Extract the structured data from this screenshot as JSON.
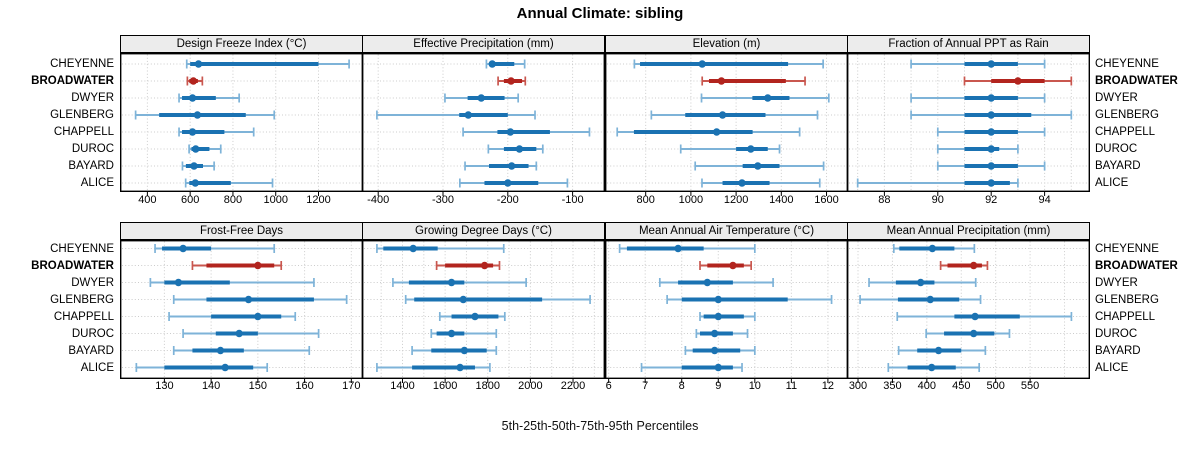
{
  "title": "Annual Climate: sibling",
  "caption": "5th-25th-50th-75th-95th Percentiles",
  "colors": {
    "blue": "#1a72b2",
    "blue_light": "#7eb3d8",
    "red": "#b2241e",
    "red_light": "#c9574f",
    "grid": "#cccccc",
    "strip_bg": "#ececec",
    "border": "#000000"
  },
  "chart_data": {
    "type": "dotplot-interval",
    "title": "Annual Climate: sibling",
    "subtitle": "5th-25th-50th-75th-95th Percentiles",
    "percentiles": [
      "5th",
      "25th",
      "50th",
      "75th",
      "95th"
    ],
    "stations": [
      "CHEYENNE",
      "BROADWATER",
      "DWYER",
      "GLENBERG",
      "CHAPPELL",
      "DUROC",
      "BAYARD",
      "ALICE"
    ],
    "highlight_station": "BROADWATER",
    "legend_position": "none",
    "grid": "dotted",
    "panels": [
      {
        "id": "design-freeze-index",
        "title": "Design Freeze Index (°C)",
        "row": 0,
        "col": 0,
        "xlim": [
          272,
          1408
        ],
        "ticks": [
          400,
          600,
          800,
          1000,
          1200
        ],
        "gridlines": [
          400,
          600,
          800,
          1000,
          1200,
          1400
        ],
        "values": [
          [
            584,
            600,
            639,
            1200,
            1343
          ],
          [
            587,
            596,
            615,
            636,
            657
          ],
          [
            548,
            562,
            611,
            720,
            829
          ],
          [
            345,
            455,
            634,
            860,
            993
          ],
          [
            548,
            562,
            611,
            760,
            897
          ],
          [
            595,
            606,
            626,
            690,
            743
          ],
          [
            564,
            580,
            618,
            660,
            712
          ],
          [
            579,
            596,
            624,
            790,
            985
          ]
        ]
      },
      {
        "id": "effective-precipitation",
        "title": "Effective Precipitation (mm)",
        "row": 0,
        "col": 1,
        "xlim": [
          -425,
          -50
        ],
        "ticks": [
          -400,
          -300,
          -200,
          -100
        ],
        "gridlines": [
          -400,
          -300,
          -200,
          -100
        ],
        "values": [
          [
            -233,
            -229,
            -224,
            -190,
            -174
          ],
          [
            -215,
            -206,
            -195,
            -178,
            -173
          ],
          [
            -297,
            -262,
            -241,
            -205,
            -184
          ],
          [
            -402,
            -275,
            -261,
            -200,
            -158
          ],
          [
            -269,
            -216,
            -196,
            -135,
            -74
          ],
          [
            -230,
            -206,
            -182,
            -156,
            -146
          ],
          [
            -266,
            -229,
            -194,
            -168,
            -156
          ],
          [
            -274,
            -236,
            -200,
            -153,
            -108
          ]
        ]
      },
      {
        "id": "elevation",
        "title": "Elevation (m)",
        "row": 0,
        "col": 2,
        "xlim": [
          620,
          1695
        ],
        "ticks": [
          800,
          1000,
          1200,
          1400,
          1600
        ],
        "gridlines": [
          800,
          1000,
          1200,
          1400,
          1600
        ],
        "values": [
          [
            750,
            775,
            1050,
            1430,
            1585
          ],
          [
            1050,
            1080,
            1135,
            1420,
            1505
          ],
          [
            1047,
            1272,
            1340,
            1436,
            1610
          ],
          [
            825,
            975,
            1140,
            1330,
            1560
          ],
          [
            674,
            748,
            1114,
            1273,
            1481
          ],
          [
            955,
            1200,
            1265,
            1340,
            1392
          ],
          [
            1019,
            1229,
            1296,
            1392,
            1587
          ],
          [
            1049,
            1140,
            1226,
            1348,
            1570
          ]
        ]
      },
      {
        "id": "fraction-annual-ppt-as-rain",
        "title": "Fraction of Annual PPT as Rain",
        "row": 0,
        "col": 3,
        "xlim": [
          86.6,
          95.7
        ],
        "ticks": [
          88,
          90,
          92,
          94
        ],
        "gridlines": [
          87,
          88,
          89,
          90,
          91,
          92,
          93,
          94,
          95
        ],
        "values": [
          [
            89,
            91,
            92,
            93,
            94
          ],
          [
            91,
            92,
            93,
            94,
            95
          ],
          [
            89,
            91,
            92,
            93,
            94
          ],
          [
            89,
            91,
            92,
            93.5,
            95
          ],
          [
            90,
            91,
            92,
            93,
            94
          ],
          [
            90,
            91,
            92,
            92.3,
            93
          ],
          [
            90,
            91,
            92,
            93,
            94
          ],
          [
            87,
            91,
            92,
            92.7,
            93
          ]
        ]
      },
      {
        "id": "frost-free-days",
        "title": "Frost-Free Days",
        "row": 1,
        "col": 0,
        "xlim": [
          120.5,
          172.5
        ],
        "ticks": [
          130,
          140,
          150,
          160,
          170
        ],
        "gridlines": [
          130,
          140,
          150,
          160,
          170
        ],
        "values": [
          [
            128,
            129.5,
            134,
            140,
            153.5
          ],
          [
            136,
            139,
            150,
            153.5,
            155
          ],
          [
            127,
            130,
            133,
            144,
            162
          ],
          [
            132,
            139,
            148,
            162,
            169
          ],
          [
            131,
            140,
            150,
            155,
            158
          ],
          [
            134,
            141,
            146,
            150,
            163
          ],
          [
            132,
            136,
            142,
            147,
            161
          ],
          [
            124,
            130,
            143,
            149,
            152
          ]
        ]
      },
      {
        "id": "growing-degree-days",
        "title": "Growing Degree Days (°C)",
        "row": 1,
        "col": 1,
        "xlim": [
          1210,
          2350
        ],
        "ticks": [
          1400,
          1600,
          1800,
          2000,
          2200
        ],
        "gridlines": [
          1300,
          1400,
          1500,
          1600,
          1700,
          1800,
          1900,
          2000,
          2100,
          2200,
          2300
        ],
        "values": [
          [
            1280,
            1310,
            1450,
            1565,
            1875
          ],
          [
            1560,
            1600,
            1785,
            1825,
            1855
          ],
          [
            1355,
            1430,
            1630,
            1690,
            1980
          ],
          [
            1415,
            1455,
            1685,
            2055,
            2280
          ],
          [
            1575,
            1630,
            1740,
            1850,
            1880
          ],
          [
            1535,
            1560,
            1630,
            1690,
            1840
          ],
          [
            1445,
            1535,
            1690,
            1795,
            1840
          ],
          [
            1280,
            1445,
            1670,
            1740,
            1810
          ]
        ]
      },
      {
        "id": "mean-annual-air-temperature",
        "title": "Mean Annual Air Temperature (°C)",
        "row": 1,
        "col": 2,
        "xlim": [
          5.9,
          12.55
        ],
        "ticks": [
          6,
          7,
          8,
          9,
          10,
          11,
          12
        ],
        "gridlines": [
          6,
          7,
          8,
          9,
          10,
          11,
          12
        ],
        "values": [
          [
            6.3,
            6.5,
            7.9,
            8.6,
            10.0
          ],
          [
            8.5,
            8.7,
            9.4,
            9.7,
            9.9
          ],
          [
            7.4,
            7.9,
            8.7,
            9.4,
            10.5
          ],
          [
            7.6,
            8.0,
            9.0,
            10.9,
            12.1
          ],
          [
            8.5,
            8.6,
            9.0,
            9.7,
            10.0
          ],
          [
            8.4,
            8.5,
            8.9,
            9.4,
            9.8
          ],
          [
            8.1,
            8.3,
            8.9,
            9.6,
            10.0
          ],
          [
            6.9,
            8.0,
            9.0,
            9.4,
            9.65
          ]
        ]
      },
      {
        "id": "mean-annual-precipitation",
        "title": "Mean Annual Precipitation (mm)",
        "row": 1,
        "col": 3,
        "xlim": [
          284,
          637
        ],
        "ticks": [
          300,
          350,
          400,
          450,
          500,
          550
        ],
        "gridlines": [
          300,
          350,
          400,
          450,
          500,
          550,
          600
        ],
        "values": [
          [
            352,
            360,
            408,
            440,
            469
          ],
          [
            420,
            430,
            468,
            480,
            488
          ],
          [
            316,
            355,
            391,
            411,
            471
          ],
          [
            303,
            358,
            405,
            447,
            478
          ],
          [
            357,
            440,
            470,
            535,
            610
          ],
          [
            399,
            425,
            468,
            498,
            520
          ],
          [
            359,
            386,
            417,
            450,
            485
          ],
          [
            344,
            372,
            407,
            442,
            476
          ]
        ]
      }
    ]
  }
}
